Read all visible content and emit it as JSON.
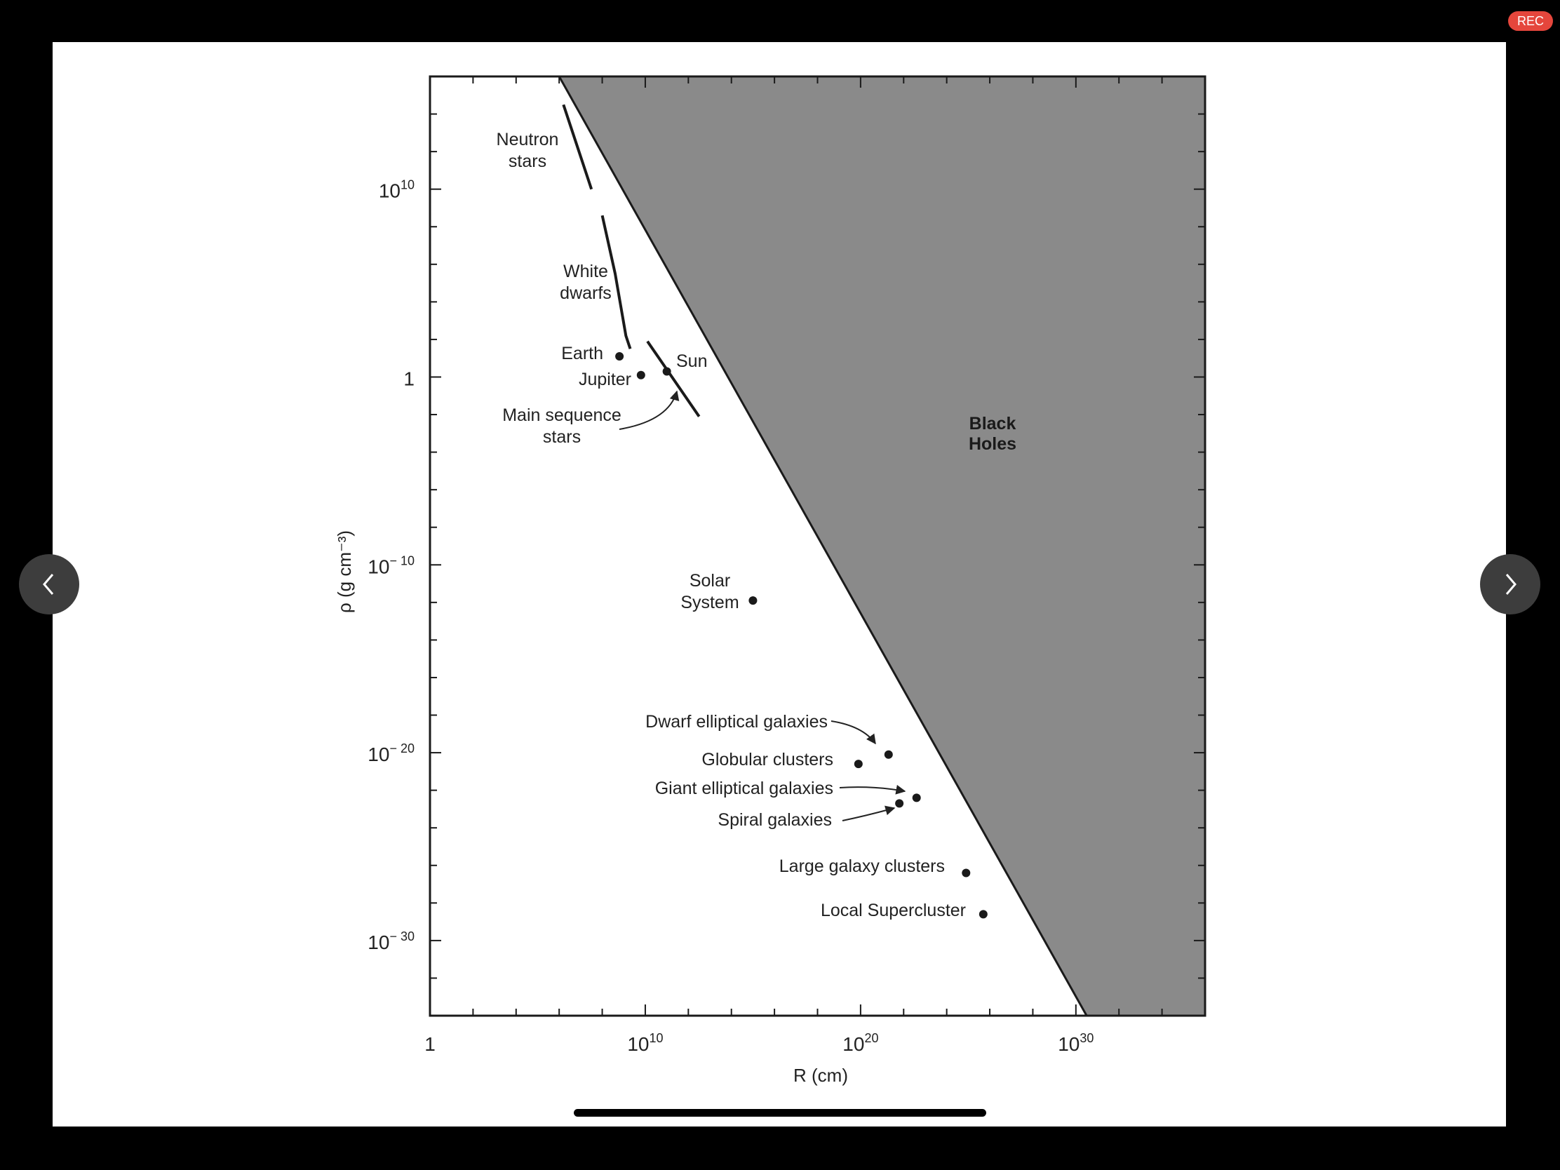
{
  "recording_badge": "REC",
  "icons": {
    "prev": "chevron-left-icon",
    "next": "chevron-right-icon"
  },
  "colors": {
    "background": "#000000",
    "slide": "#ffffff",
    "black_hole_region": "#8a8a8a",
    "rec_badge": "#e5463c",
    "nav_button": "#3d3d3d"
  },
  "chart_data": {
    "type": "scatter",
    "title": "",
    "xlabel": "R    (cm)",
    "ylabel": "ρ   (g cm⁻³)",
    "x_scale": "log",
    "y_scale": "log",
    "xlim_log10": [
      0,
      36
    ],
    "ylim_log10": [
      -34,
      16
    ],
    "x_ticks": [
      {
        "log10": 0,
        "base": "1",
        "exp": ""
      },
      {
        "log10": 10,
        "base": "10",
        "exp": "10"
      },
      {
        "log10": 20,
        "base": "10",
        "exp": "20"
      },
      {
        "log10": 30,
        "base": "10",
        "exp": "30"
      }
    ],
    "y_ticks": [
      {
        "log10": 10,
        "base": "10",
        "exp": "10"
      },
      {
        "log10": 0,
        "base": "1",
        "exp": ""
      },
      {
        "log10": -10,
        "base": "10",
        "exp": "− 10"
      },
      {
        "log10": -20,
        "base": "10",
        "exp": "− 20"
      },
      {
        "log10": -30,
        "base": "10",
        "exp": "− 30"
      }
    ],
    "region_label": [
      "Black",
      "Holes"
    ],
    "boundary_log10": [
      [
        6,
        16
      ],
      [
        30.5,
        -32.9
      ]
    ],
    "curves": [
      {
        "name": "Neutron stars",
        "points_log10": [
          [
            6.2,
            14.5
          ],
          [
            7.5,
            10.0
          ]
        ]
      },
      {
        "name": "White dwarfs",
        "points_log10": [
          [
            8.0,
            8.6
          ],
          [
            8.6,
            5.5
          ],
          [
            9.1,
            2.2
          ],
          [
            9.3,
            1.5
          ]
        ]
      },
      {
        "name": "Main sequence stars",
        "points_log10": [
          [
            10.1,
            1.9
          ],
          [
            12.5,
            -2.1
          ]
        ]
      }
    ],
    "points": [
      {
        "label": "Earth",
        "log10_R": 8.8,
        "log10_rho": 1.1
      },
      {
        "label": "Jupiter",
        "log10_R": 9.8,
        "log10_rho": 0.1
      },
      {
        "label": "Sun",
        "log10_R": 11.0,
        "log10_rho": 0.3
      },
      {
        "label": "Solar System",
        "log10_R": 15.0,
        "log10_rho": -11.9
      },
      {
        "label": "Dwarf elliptical galaxies",
        "log10_R": 21.3,
        "log10_rho": -20.1
      },
      {
        "label": "Globular clusters",
        "log10_R": 19.9,
        "log10_rho": -20.6
      },
      {
        "label": "Giant elliptical galaxies",
        "log10_R": 22.6,
        "log10_rho": -22.4
      },
      {
        "label": "Spiral galaxies",
        "log10_R": 21.8,
        "log10_rho": -22.7
      },
      {
        "label": "Large galaxy clusters",
        "log10_R": 24.9,
        "log10_rho": -26.4
      },
      {
        "label": "Local Supercluster",
        "log10_R": 25.7,
        "log10_rho": -28.6
      }
    ],
    "annotations": [
      {
        "id": "neutron",
        "lines": [
          "Neutron",
          "stars"
        ]
      },
      {
        "id": "white",
        "lines": [
          "White",
          "dwarfs"
        ]
      },
      {
        "id": "earth",
        "lines": [
          "Earth"
        ]
      },
      {
        "id": "jupiter",
        "lines": [
          "Jupiter"
        ]
      },
      {
        "id": "sun",
        "lines": [
          "Sun"
        ]
      },
      {
        "id": "mainseq",
        "lines": [
          "Main sequence",
          "stars"
        ]
      },
      {
        "id": "solar",
        "lines": [
          "Solar",
          "System"
        ]
      },
      {
        "id": "dwarf",
        "lines": [
          "Dwarf elliptical galaxies"
        ]
      },
      {
        "id": "globular",
        "lines": [
          "Globular clusters"
        ]
      },
      {
        "id": "giant",
        "lines": [
          "Giant elliptical galaxies"
        ]
      },
      {
        "id": "spiral",
        "lines": [
          "Spiral galaxies"
        ]
      },
      {
        "id": "large",
        "lines": [
          "Large galaxy clusters"
        ]
      },
      {
        "id": "local",
        "lines": [
          "Local Supercluster"
        ]
      }
    ]
  }
}
